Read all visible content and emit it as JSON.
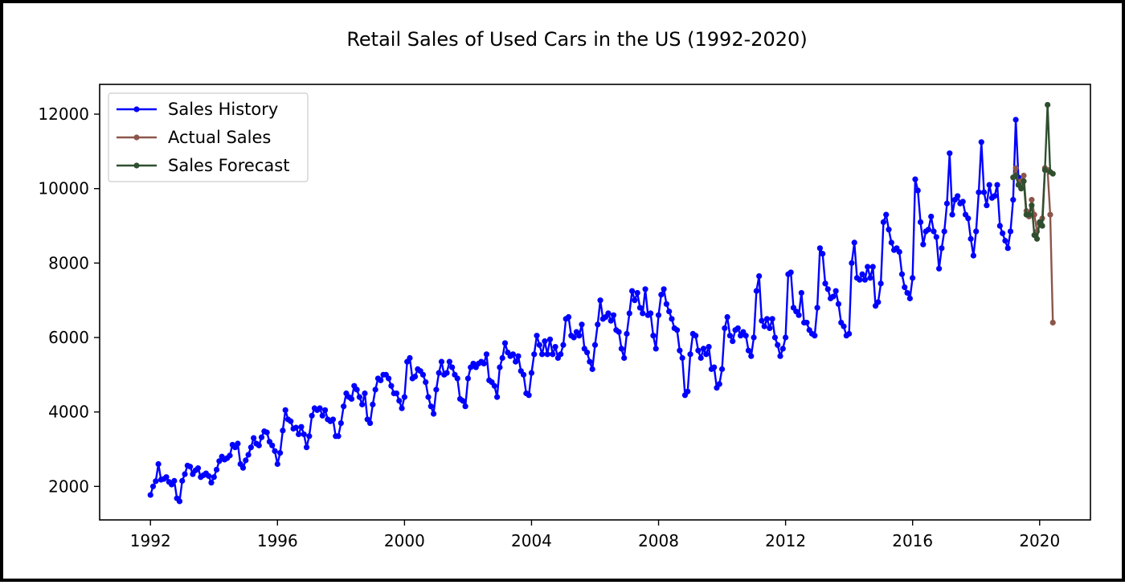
{
  "chart_data": {
    "type": "line",
    "title": "Retail Sales of Used Cars in the US (1992-2020)",
    "xlabel": "",
    "ylabel": "",
    "xlim": [
      1990.4,
      2021.6
    ],
    "ylim": [
      1100,
      12800
    ],
    "x_ticks": [
      "1992",
      "1996",
      "2000",
      "2004",
      "2008",
      "2012",
      "2016",
      "2020"
    ],
    "y_ticks": [
      "2000",
      "4000",
      "6000",
      "8000",
      "10000",
      "12000"
    ],
    "grid": false,
    "legend_position": "top-left",
    "series": [
      {
        "name": "Sales History",
        "color": "#0000ff",
        "start": 1992.0,
        "step": 0.08333,
        "values": [
          1770,
          2000,
          2140,
          2600,
          2180,
          2200,
          2250,
          2120,
          2050,
          2150,
          1680,
          1600,
          2150,
          2330,
          2560,
          2530,
          2330,
          2430,
          2490,
          2250,
          2300,
          2350,
          2280,
          2100,
          2250,
          2450,
          2680,
          2800,
          2720,
          2760,
          2830,
          3120,
          3050,
          3150,
          2600,
          2500,
          2700,
          2850,
          3050,
          3300,
          3150,
          3100,
          3320,
          3480,
          3450,
          3200,
          3100,
          2950,
          2600,
          2900,
          3500,
          4050,
          3800,
          3750,
          3550,
          3580,
          3400,
          3600,
          3400,
          3050,
          3350,
          3900,
          4100,
          4050,
          4100,
          3900,
          4050,
          3800,
          3750,
          3800,
          3350,
          3350,
          3700,
          4150,
          4500,
          4400,
          4350,
          4700,
          4600,
          4400,
          4200,
          4500,
          3800,
          3700,
          4200,
          4600,
          4900,
          4850,
          5000,
          5000,
          4900,
          4700,
          4500,
          4500,
          4300,
          4100,
          4400,
          5350,
          5450,
          4900,
          4950,
          5150,
          5100,
          5000,
          4800,
          4400,
          4150,
          3950,
          4600,
          5050,
          5350,
          5000,
          5050,
          5350,
          5200,
          5000,
          4900,
          4350,
          4300,
          4150,
          4900,
          5200,
          5300,
          5200,
          5300,
          5350,
          5300,
          5550,
          4850,
          4800,
          4700,
          4400,
          5200,
          5450,
          5850,
          5600,
          5500,
          5550,
          5350,
          5500,
          5100,
          5000,
          4500,
          4450,
          5050,
          5550,
          6050,
          5800,
          5550,
          5900,
          5550,
          5950,
          5550,
          5750,
          5450,
          5550,
          5800,
          6500,
          6550,
          6050,
          6000,
          6150,
          6050,
          6350,
          5700,
          5600,
          5350,
          5150,
          5800,
          6350,
          7000,
          6500,
          6550,
          6650,
          6450,
          6600,
          6200,
          6150,
          5700,
          5450,
          6100,
          6650,
          7250,
          7000,
          7200,
          6800,
          6650,
          7300,
          6600,
          6650,
          6050,
          5700,
          6600,
          7150,
          7300,
          6900,
          6700,
          6500,
          6250,
          6200,
          5650,
          5450,
          4450,
          4550,
          5550,
          6100,
          6050,
          5650,
          5450,
          5700,
          5550,
          5750,
          5150,
          5200,
          4650,
          4750,
          5150,
          6250,
          6550,
          6050,
          5900,
          6200,
          6250,
          6050,
          6150,
          6050,
          5650,
          5500,
          6000,
          7250,
          7650,
          6450,
          6300,
          6500,
          6250,
          6500,
          6000,
          5800,
          5500,
          5700,
          6000,
          7700,
          7750,
          6800,
          6700,
          6600,
          7200,
          6400,
          6400,
          6200,
          6100,
          6050,
          6800,
          8400,
          8250,
          7450,
          7300,
          7050,
          7100,
          7250,
          6900,
          6400,
          6300,
          6050,
          6100,
          8000,
          8550,
          7600,
          7550,
          7700,
          7550,
          7900,
          7600,
          7900,
          6850,
          6950,
          7450,
          9100,
          9300,
          8900,
          8550,
          8350,
          8400,
          8300,
          7700,
          7350,
          7200,
          7050,
          7600,
          10250,
          9950,
          9100,
          8500,
          8850,
          8900,
          9250,
          8850,
          8700,
          7850,
          8400,
          8850,
          9600,
          10950,
          9300,
          9700,
          9800,
          9600,
          9650,
          9300,
          9200,
          8650,
          8200,
          8850,
          9900,
          11250,
          9900,
          9550,
          10100,
          9750,
          9800,
          10100,
          9000,
          8800,
          8600,
          8400,
          8850,
          9700,
          11850,
          10300
        ]
      },
      {
        "name": "Actual Sales",
        "color": "#8c564b",
        "start": 2019.1667,
        "step": 0.08333,
        "values": [
          10300,
          10550,
          10100,
          10200,
          10350,
          9400,
          9250,
          9700,
          9300,
          8850,
          9050,
          9200,
          10550,
          10500,
          9300,
          6400
        ]
      },
      {
        "name": "Sales Forecast",
        "color": "#2f4f2f",
        "start": 2019.1667,
        "step": 0.08333,
        "values": [
          10300,
          10350,
          10100,
          10000,
          10200,
          9300,
          9300,
          9550,
          8750,
          8650,
          9100,
          9000,
          10500,
          12250,
          10450,
          10400
        ]
      }
    ]
  }
}
